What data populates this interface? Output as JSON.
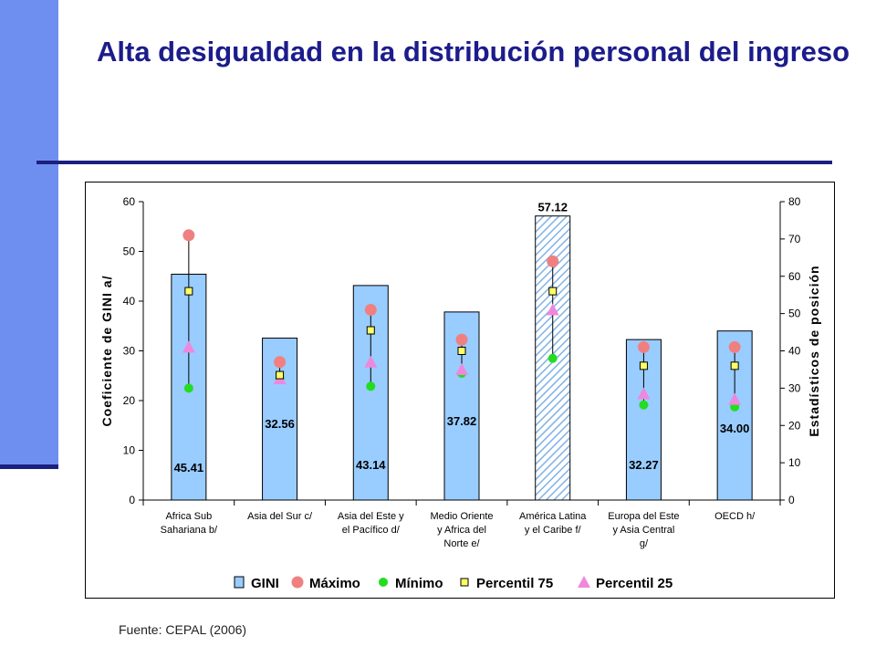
{
  "slide": {
    "title": "Alta desigualdad en la distribución personal del ingreso",
    "source": "Fuente: CEPAL (2006)"
  },
  "colors": {
    "gini_bar": "#99ccff",
    "maximo": "#f08080",
    "minimo": "#22dd22",
    "p75": "#ffff66",
    "p25": "#ee88dd",
    "accent": "#1c1c8c"
  },
  "chart_data": {
    "type": "bar",
    "ylabel": "Coeficiente de GINI a/",
    "y2label": "Estadísticos de posición",
    "ylim": [
      0,
      60
    ],
    "y2lim": [
      0,
      80
    ],
    "yticks": [
      "0",
      "10",
      "20",
      "30",
      "40",
      "50",
      "60"
    ],
    "y2ticks": [
      "0",
      "10",
      "20",
      "30",
      "40",
      "50",
      "60",
      "70",
      "80"
    ],
    "categories": [
      [
        "Africa Sub",
        "Sahariana b/"
      ],
      [
        "Asia del Sur c/"
      ],
      [
        "Asia del Este y",
        "el Pacífico d/"
      ],
      [
        "Medio Oriente",
        "y Africa del",
        "Norte e/"
      ],
      [
        "América Latina",
        "y el Caribe f/"
      ],
      [
        "Europa del Este",
        "y Asia Central",
        "g/"
      ],
      [
        "OECD h/"
      ]
    ],
    "highlight_index": 4,
    "series": [
      {
        "name": "GINI",
        "kind": "bar",
        "values": [
          45.41,
          32.56,
          43.14,
          37.82,
          57.12,
          32.27,
          34.0
        ]
      },
      {
        "name": "Máximo",
        "kind": "marker",
        "values": [
          71,
          37,
          51,
          43,
          64,
          41,
          41
        ]
      },
      {
        "name": "Mínimo",
        "kind": "marker",
        "values": [
          30,
          32.5,
          30.5,
          34,
          38,
          25.5,
          25
        ]
      },
      {
        "name": "Percentil 75",
        "kind": "marker",
        "values": [
          56,
          33.5,
          45.5,
          40,
          56,
          36,
          36
        ]
      },
      {
        "name": "Percentil 25",
        "kind": "marker",
        "values": [
          41,
          32.5,
          37,
          35,
          51,
          28.5,
          27
        ]
      }
    ],
    "value_labels": [
      "45.41",
      "32.56",
      "43.14",
      "37.82",
      "57.12",
      "32.27",
      "34.00"
    ],
    "legend_position": "bottom"
  }
}
